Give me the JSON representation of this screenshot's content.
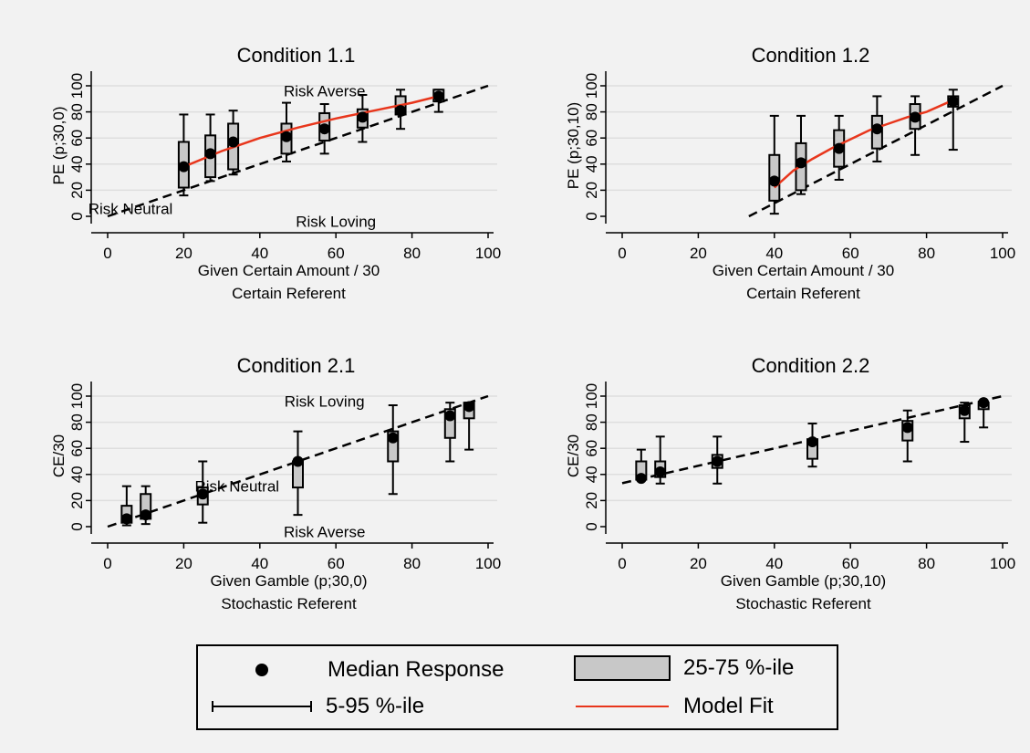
{
  "chart_data": [
    {
      "type": "boxplot",
      "title": "Condition 1.1",
      "ylabel": "PE (p;30,0)",
      "xlabel": [
        "Given Certain Amount / 30",
        "Certain Referent"
      ],
      "xlim": [
        0,
        100
      ],
      "ylim": [
        0,
        100
      ],
      "xticks": [
        0,
        20,
        40,
        60,
        80,
        100
      ],
      "yticks": [
        0,
        20,
        40,
        60,
        80,
        100
      ],
      "grid": true,
      "reference_line": [
        [
          0,
          0
        ],
        [
          100,
          100
        ]
      ],
      "annotations": [
        {
          "text": "Risk Averse",
          "x": 57,
          "y": 96
        },
        {
          "text": "Risk Neutral",
          "x": 6,
          "y": 6
        },
        {
          "text": "Risk Loving",
          "x": 60,
          "y": -4
        }
      ],
      "boxes": [
        {
          "x": 20,
          "p5": 16,
          "q1": 22,
          "median": 38,
          "q3": 57,
          "p95": 78
        },
        {
          "x": 27,
          "p5": 27,
          "q1": 30,
          "median": 48,
          "q3": 62,
          "p95": 78
        },
        {
          "x": 33,
          "p5": 32,
          "q1": 36,
          "median": 57,
          "q3": 71,
          "p95": 81
        },
        {
          "x": 47,
          "p5": 42,
          "q1": 48,
          "median": 61,
          "q3": 71,
          "p95": 87
        },
        {
          "x": 57,
          "p5": 48,
          "q1": 58,
          "median": 67,
          "q3": 79,
          "p95": 86
        },
        {
          "x": 67,
          "p5": 57,
          "q1": 68,
          "median": 76,
          "q3": 82,
          "p95": 93
        },
        {
          "x": 77,
          "p5": 67,
          "q1": 78,
          "median": 81,
          "q3": 92,
          "p95": 97
        },
        {
          "x": 87,
          "p5": 80,
          "q1": 88,
          "median": 92,
          "q3": 97,
          "p95": 97
        }
      ],
      "model_fit": [
        [
          20,
          38
        ],
        [
          30,
          50
        ],
        [
          40,
          60
        ],
        [
          50,
          68
        ],
        [
          60,
          75
        ],
        [
          70,
          81
        ],
        [
          80,
          87
        ],
        [
          87,
          92
        ]
      ]
    },
    {
      "type": "boxplot",
      "title": "Condition 1.2",
      "ylabel": "PE (p;30,10)",
      "xlabel": [
        "Given Certain Amount / 30",
        "Certain Referent"
      ],
      "xlim": [
        0,
        100
      ],
      "ylim": [
        0,
        100
      ],
      "xticks": [
        0,
        20,
        40,
        60,
        80,
        100
      ],
      "yticks": [
        0,
        20,
        40,
        60,
        80,
        100
      ],
      "grid": true,
      "reference_line": [
        [
          33.3,
          0
        ],
        [
          100,
          100
        ]
      ],
      "annotations": [],
      "boxes": [
        {
          "x": 40,
          "p5": 2,
          "q1": 12,
          "median": 27,
          "q3": 47,
          "p95": 77
        },
        {
          "x": 47,
          "p5": 17,
          "q1": 20,
          "median": 41,
          "q3": 56,
          "p95": 77
        },
        {
          "x": 57,
          "p5": 28,
          "q1": 38,
          "median": 52,
          "q3": 66,
          "p95": 77
        },
        {
          "x": 67,
          "p5": 42,
          "q1": 52,
          "median": 67,
          "q3": 77,
          "p95": 92
        },
        {
          "x": 77,
          "p5": 47,
          "q1": 67,
          "median": 76,
          "q3": 86,
          "p95": 92
        },
        {
          "x": 87,
          "p5": 51,
          "q1": 84,
          "median": 88,
          "q3": 92,
          "p95": 97
        }
      ],
      "model_fit": [
        [
          40,
          22
        ],
        [
          45,
          35
        ],
        [
          50,
          44
        ],
        [
          55,
          52
        ],
        [
          60,
          59
        ],
        [
          65,
          66
        ],
        [
          70,
          71
        ],
        [
          75,
          76
        ],
        [
          80,
          80
        ],
        [
          87,
          89
        ]
      ]
    },
    {
      "type": "boxplot",
      "title": "Condition 2.1",
      "ylabel": "CE/30",
      "xlabel": [
        "Given Gamble (p;30,0)",
        "Stochastic Referent"
      ],
      "xlim": [
        0,
        100
      ],
      "ylim": [
        0,
        100
      ],
      "xticks": [
        0,
        20,
        40,
        60,
        80,
        100
      ],
      "yticks": [
        0,
        20,
        40,
        60,
        80,
        100
      ],
      "grid": true,
      "reference_line": [
        [
          0,
          0
        ],
        [
          100,
          100
        ]
      ],
      "annotations": [
        {
          "text": "Risk Loving",
          "x": 57,
          "y": 96
        },
        {
          "text": "Risk Neutral",
          "x": 34,
          "y": 31
        },
        {
          "text": "Risk Averse",
          "x": 57,
          "y": -4
        }
      ],
      "boxes": [
        {
          "x": 5,
          "p5": 1,
          "q1": 3,
          "median": 6,
          "q3": 16,
          "p95": 31
        },
        {
          "x": 10,
          "p5": 2,
          "q1": 6,
          "median": 9,
          "q3": 25,
          "p95": 31
        },
        {
          "x": 25,
          "p5": 3,
          "q1": 17,
          "median": 25,
          "q3": 30,
          "p95": 50
        },
        {
          "x": 50,
          "p5": 9,
          "q1": 30,
          "median": 50,
          "q3": 50,
          "p95": 73
        },
        {
          "x": 75,
          "p5": 25,
          "q1": 50,
          "median": 68,
          "q3": 73,
          "p95": 93
        },
        {
          "x": 90,
          "p5": 50,
          "q1": 68,
          "median": 85,
          "q3": 90,
          "p95": 95
        },
        {
          "x": 95,
          "p5": 59,
          "q1": 83,
          "median": 92,
          "q3": 95,
          "p95": 95
        }
      ],
      "model_fit": []
    },
    {
      "type": "boxplot",
      "title": "Condition 2.2",
      "ylabel": "CE/30",
      "xlabel": [
        "Given Gamble (p;30,10)",
        "Stochastic Referent"
      ],
      "xlim": [
        0,
        100
      ],
      "ylim": [
        0,
        100
      ],
      "xticks": [
        0,
        20,
        40,
        60,
        80,
        100
      ],
      "yticks": [
        0,
        20,
        40,
        60,
        80,
        100
      ],
      "grid": true,
      "reference_line": [
        [
          0,
          33.3
        ],
        [
          100,
          100
        ]
      ],
      "annotations": [],
      "boxes": [
        {
          "x": 5,
          "p5": 36,
          "q1": 36,
          "median": 37,
          "q3": 50,
          "p95": 59
        },
        {
          "x": 10,
          "p5": 33,
          "q1": 38,
          "median": 42,
          "q3": 50,
          "p95": 69
        },
        {
          "x": 25,
          "p5": 33,
          "q1": 45,
          "median": 50,
          "q3": 55,
          "p95": 69
        },
        {
          "x": 50,
          "p5": 46,
          "q1": 52,
          "median": 65,
          "q3": 67,
          "p95": 79
        },
        {
          "x": 75,
          "p5": 50,
          "q1": 66,
          "median": 76,
          "q3": 81,
          "p95": 89
        },
        {
          "x": 90,
          "p5": 65,
          "q1": 83,
          "median": 89,
          "q3": 93,
          "p95": 95
        },
        {
          "x": 95,
          "p5": 76,
          "q1": 90,
          "median": 95,
          "q3": 95,
          "p95": 96
        }
      ],
      "model_fit": []
    }
  ],
  "legend": {
    "median_label": "Median Response",
    "box_label": "25-75 %-ile",
    "whisker_label": "5-95 %-ile",
    "fit_label": "Model Fit"
  },
  "colors": {
    "box_fill": "#c8c8c8",
    "fit": "#e8361c",
    "grid": "#dedede",
    "background": "#f2f2f2"
  }
}
